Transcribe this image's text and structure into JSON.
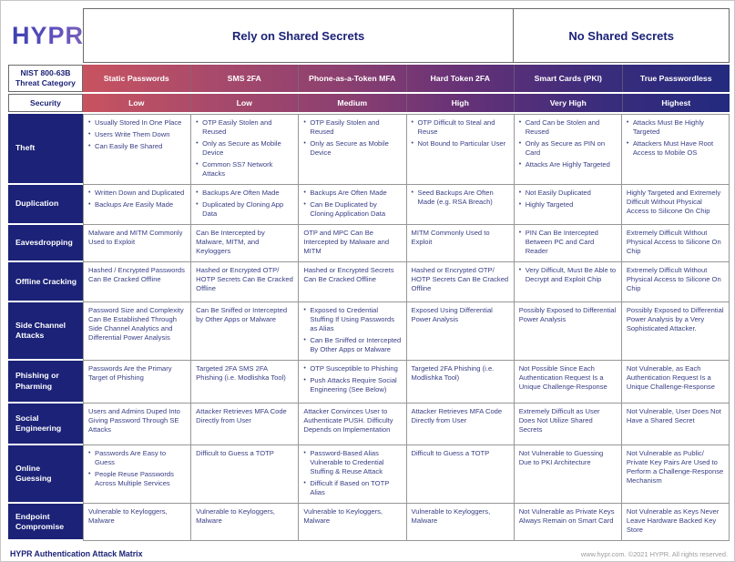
{
  "brand": {
    "logo_text": "HYPR"
  },
  "table": {
    "groups": [
      {
        "label": "Rely on Shared Secrets",
        "span": 4
      },
      {
        "label": "No Shared Secrets",
        "span": 2
      }
    ],
    "corner": {
      "threat_category": "NIST 800-63B Threat Category",
      "security": "Security"
    },
    "columns": [
      {
        "name": "Static Passwords",
        "security": "Low"
      },
      {
        "name": "SMS 2FA",
        "security": "Low"
      },
      {
        "name": "Phone-as-a-Token MFA",
        "security": "Medium"
      },
      {
        "name": "Hard Token 2FA",
        "security": "High"
      },
      {
        "name": "Smart Cards (PKI)",
        "security": "Very High"
      },
      {
        "name": "True Passwordless",
        "security": "Highest"
      }
    ],
    "rows": [
      {
        "label": "Theft",
        "cells": [
          {
            "bulleted": true,
            "items": [
              "Usually Stored In One Place",
              "Users Write Them Down",
              "Can Easily Be Shared"
            ]
          },
          {
            "bulleted": true,
            "items": [
              "OTP Easily Stolen and Reused",
              "Only as Secure as Mobile Device",
              "Common SS7 Network Attacks"
            ]
          },
          {
            "bulleted": true,
            "items": [
              "OTP Easily Stolen and Reused",
              "Only as Secure as Mobile Device"
            ]
          },
          {
            "bulleted": true,
            "items": [
              "OTP Difficult to Steal and Reuse",
              "Not Bound to Particular User"
            ]
          },
          {
            "bulleted": true,
            "items": [
              "Card Can be Stolen and Reused",
              "Only as Secure as PIN on Card",
              "Attacks Are Highly Targeted"
            ]
          },
          {
            "bulleted": true,
            "items": [
              "Attacks Must Be Highly Targeted",
              "Attackers Must Have Root Access to Mobile OS"
            ]
          }
        ]
      },
      {
        "label": "Duplication",
        "cells": [
          {
            "bulleted": true,
            "items": [
              "Written Down and Duplicated",
              "Backups Are Easily Made"
            ]
          },
          {
            "bulleted": true,
            "items": [
              "Backups Are Often Made",
              "Duplicated by Cloning App Data"
            ]
          },
          {
            "bulleted": true,
            "items": [
              "Backups Are Often Made",
              "Can Be Duplicated by Cloning Application Data"
            ]
          },
          {
            "bulleted": true,
            "items": [
              "Seed Backups Are Often Made (e.g. RSA Breach)"
            ]
          },
          {
            "bulleted": true,
            "items": [
              "Not Easily Duplicated",
              "Highly Targeted"
            ]
          },
          {
            "bulleted": false,
            "items": [
              "Highly Targeted and Extremely Difficult Without Physical Access to Silicone On Chip"
            ]
          }
        ]
      },
      {
        "label": "Eavesdropping",
        "cells": [
          {
            "bulleted": false,
            "items": [
              "Malware and MITM Commonly Used to Exploit"
            ]
          },
          {
            "bulleted": false,
            "items": [
              "Can Be Intercepted by Malware, MITM, and Keyloggers"
            ]
          },
          {
            "bulleted": false,
            "items": [
              "OTP and MPC Can Be Intercepted by Malware and MITM"
            ]
          },
          {
            "bulleted": false,
            "items": [
              "MITM Commonly Used to Exploit"
            ]
          },
          {
            "bulleted": true,
            "items": [
              "PIN Can Be Intercepted Between PC and Card Reader"
            ]
          },
          {
            "bulleted": false,
            "items": [
              "Extremely Difficult Without Physical Access to Silicone On Chip"
            ]
          }
        ]
      },
      {
        "label": "Offline Cracking",
        "cells": [
          {
            "bulleted": false,
            "items": [
              "Hashed / Encrypted Passwords Can Be Cracked Offline"
            ]
          },
          {
            "bulleted": false,
            "items": [
              "Hashed or Encrypted OTP/ HOTP Secrets Can Be Cracked Offline"
            ]
          },
          {
            "bulleted": false,
            "items": [
              "Hashed or Encrypted Secrets Can Be Cracked Offline"
            ]
          },
          {
            "bulleted": false,
            "items": [
              "Hashed or Encrypted OTP/ HOTP Secrets Can Be Cracked Offline"
            ]
          },
          {
            "bulleted": true,
            "items": [
              "Very Difficult, Must Be Able to Decrypt and Exploit Chip"
            ]
          },
          {
            "bulleted": false,
            "items": [
              "Extremely Difficult Without Physical Access to Silicone On Chip"
            ]
          }
        ]
      },
      {
        "label": "Side Channel Attacks",
        "cells": [
          {
            "bulleted": false,
            "items": [
              "Password Size and Complexity Can Be Established Through Side Channel Analytics and Differential Power Analysis"
            ]
          },
          {
            "bulleted": false,
            "items": [
              "Can Be Sniffed or Intercepted by Other Apps or Malware"
            ]
          },
          {
            "bulleted": true,
            "items": [
              "Exposed to Credential Stuffing If Using Passwords as Alias",
              "Can Be Sniffed or Intercepted By Other Apps or Malware"
            ]
          },
          {
            "bulleted": false,
            "items": [
              "Exposed Using Differential Power Analysis"
            ]
          },
          {
            "bulleted": false,
            "items": [
              "Possibly Exposed to Differential Power Analysis"
            ]
          },
          {
            "bulleted": false,
            "items": [
              "Possibly Exposed to Differential Power Analysis by a Very Sophisticated Attacker."
            ]
          }
        ]
      },
      {
        "label": "Phishing or Pharming",
        "cells": [
          {
            "bulleted": false,
            "items": [
              "Passwords Are the Primary Target of Phishing"
            ]
          },
          {
            "bulleted": false,
            "items": [
              "Targeted 2FA SMS 2FA Phishing (i.e. Modlishka Tool)"
            ]
          },
          {
            "bulleted": true,
            "items": [
              "OTP Susceptible to Phishing",
              "Push Attacks Require Social Engineering (See Below)"
            ]
          },
          {
            "bulleted": false,
            "items": [
              "Targeted 2FA Phishing (i.e. Modlishka Tool)"
            ]
          },
          {
            "bulleted": false,
            "items": [
              "Not Possible Since Each Authentication Request Is a Unique Challenge-Response"
            ]
          },
          {
            "bulleted": false,
            "items": [
              "Not Vulnerable, as Each Authentication Request Is a Unique Challenge-Response"
            ]
          }
        ]
      },
      {
        "label": "Social Engineering",
        "cells": [
          {
            "bulleted": false,
            "items": [
              "Users and Admins Duped Into Giving Password Through SE Attacks"
            ]
          },
          {
            "bulleted": false,
            "items": [
              "Attacker Retrieves MFA Code Directly from User"
            ]
          },
          {
            "bulleted": false,
            "items": [
              "Attacker Convinces User to Authenticate PUSH. Difficulty Depends on Implementation"
            ]
          },
          {
            "bulleted": false,
            "items": [
              "Attacker Retrieves MFA Code Directly from User"
            ]
          },
          {
            "bulleted": false,
            "items": [
              "Extremely Difficult as User Does Not Utilize Shared Secrets"
            ]
          },
          {
            "bulleted": false,
            "items": [
              "Not Vulnerable, User Does Not Have a Shared Secret"
            ]
          }
        ]
      },
      {
        "label": "Online Guessing",
        "cells": [
          {
            "bulleted": true,
            "items": [
              "Passwords Are Easy to Guess",
              "People Reuse Passwords Across Multiple Services"
            ]
          },
          {
            "bulleted": false,
            "items": [
              "Difficult to Guess a TOTP"
            ]
          },
          {
            "bulleted": true,
            "items": [
              "Password-Based Alias Vulnerable to Credential Stuffing & Reuse Attack",
              "Difficult if Based on TOTP Alias"
            ]
          },
          {
            "bulleted": false,
            "items": [
              "Difficult to Guess a TOTP"
            ]
          },
          {
            "bulleted": false,
            "items": [
              "Not Vulnerable to Guessing Due to PKI Architecture"
            ]
          },
          {
            "bulleted": false,
            "items": [
              "Not Vulnerable as Public/ Private Key Pairs Are Used to Perform a Challenge-Response Mechanism"
            ]
          }
        ]
      },
      {
        "label": "Endpoint Compromise",
        "cells": [
          {
            "bulleted": false,
            "items": [
              "Vulnerable to Keyloggers, Malware"
            ]
          },
          {
            "bulleted": false,
            "items": [
              "Vulnerable to Keyloggers, Malware"
            ]
          },
          {
            "bulleted": false,
            "items": [
              "Vulnerable to Keyloggers, Malware"
            ]
          },
          {
            "bulleted": false,
            "items": [
              "Vulnerable to Keyloggers, Malware"
            ]
          },
          {
            "bulleted": false,
            "items": [
              "Not Vulnerable as Private Keys Always Remain on Smart Card"
            ]
          },
          {
            "bulleted": false,
            "items": [
              "Not Vulnerable as Keys Never Leave Hardware Backed Key Store"
            ]
          }
        ]
      }
    ]
  },
  "footer": {
    "title": "HYPR Authentication Attack Matrix",
    "copyright": "www.hypr.com. ©2021 HYPR. All rights reserved."
  },
  "colors": {
    "navy": "#1b2277",
    "gradient_start": "#c85360",
    "gradient_end": "#232a7e",
    "body_text": "#3a4086",
    "border_gray": "#979797"
  }
}
